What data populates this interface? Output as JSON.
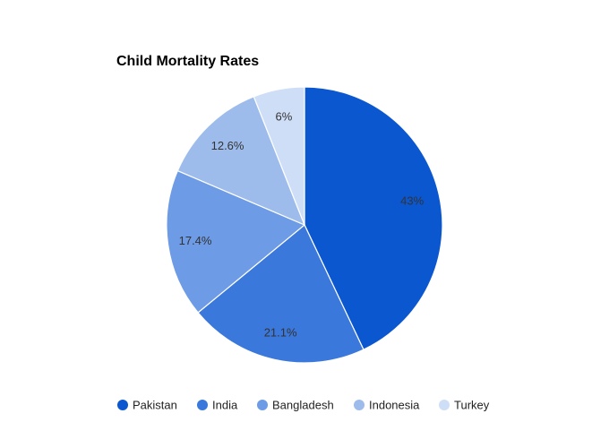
{
  "chart_data": {
    "type": "pie",
    "title": "Child Mortality Rates",
    "categories": [
      "Pakistan",
      "India",
      "Bangladesh",
      "Indonesia",
      "Turkey"
    ],
    "values": [
      43,
      21.1,
      17.4,
      12.6,
      6
    ],
    "labels": [
      "43%",
      "21.1%",
      "17.4%",
      "12.6%",
      "6%"
    ],
    "colors": [
      "#0b57d0",
      "#3b78db",
      "#6d9be5",
      "#9dbcec",
      "#cfdef7"
    ],
    "start_angle": "top",
    "direction": "clockwise",
    "legend_position": "bottom"
  }
}
